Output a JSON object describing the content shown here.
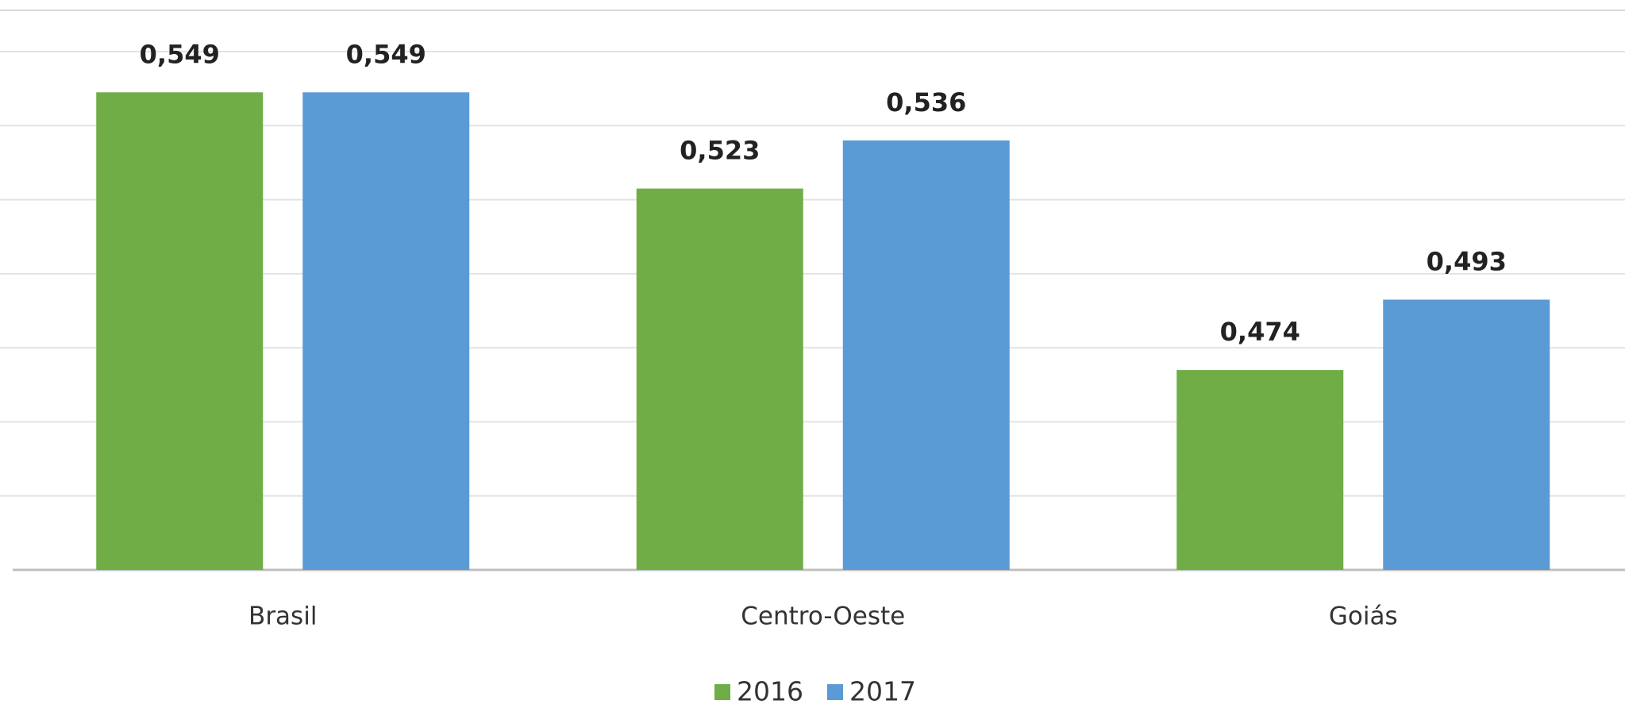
{
  "chart_data": {
    "type": "bar",
    "categories": [
      "Brasil",
      "Centro-Oeste",
      "Goiás"
    ],
    "series": [
      {
        "name": "2016",
        "color": "#70ad47",
        "values": [
          0.549,
          0.523,
          0.474
        ],
        "value_labels": [
          "0,549",
          "0,523",
          "0,474"
        ]
      },
      {
        "name": "2017",
        "color": "#5b9bd5",
        "values": [
          0.549,
          0.536,
          0.493
        ],
        "value_labels": [
          "0,549",
          "0,536",
          "0,493"
        ]
      }
    ],
    "ylim": [
      0.42,
      0.56
    ],
    "yticks": [
      0.42,
      0.44,
      0.46,
      0.48,
      0.5,
      0.52,
      0.54,
      0.56
    ],
    "grid": true,
    "legend": "bottom"
  }
}
